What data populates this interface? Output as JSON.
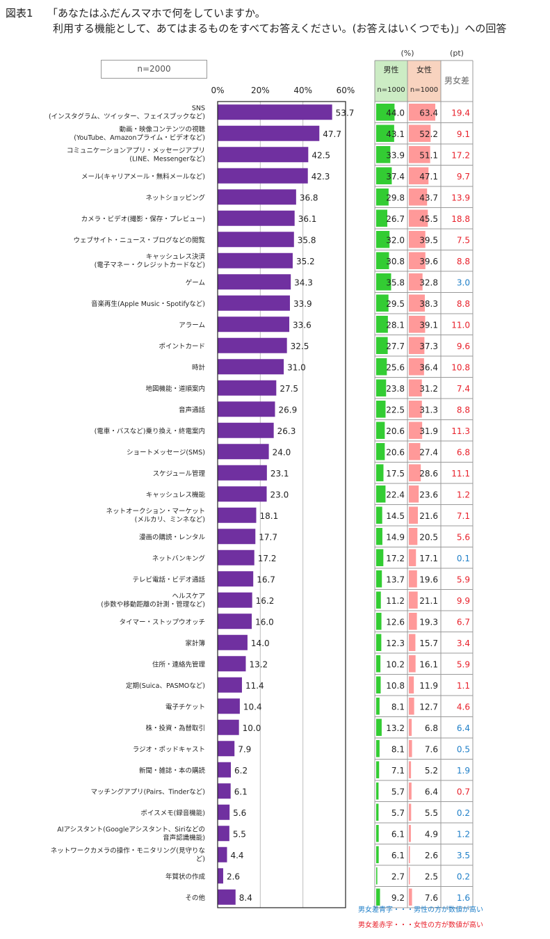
{
  "figure_label": "図表1",
  "title_line1": "「あなたはふだんスマホで何をしていますか。",
  "title_line2": "利用する機能として、あてはまるものをすべてお答えください。(お答えはいくつでも)」への回答",
  "n_total_label": "n=2000",
  "unit_percent": "(%)",
  "unit_pt": "(pt)",
  "col_male": "男性",
  "col_female": "女性",
  "col_male_n": "n=1000",
  "col_female_n": "n=1000",
  "col_diff": "男女差",
  "legend_blue": "男女差青字・・・男性の方が数値が高い",
  "legend_red": "男女差赤字・・・女性の方が数値が高い",
  "colors": {
    "bar": "#7030a0",
    "male_bar": "#33cc33",
    "female_bar": "#ff9999",
    "male_header": "#ccecc4",
    "female_header": "#f8d3bf",
    "diff_blue": "#1f7fc8",
    "diff_red": "#e8202a"
  },
  "chart_data": {
    "type": "bar",
    "orientation": "horizontal",
    "xlim": [
      0,
      60
    ],
    "xticks": [
      "0%",
      "20%",
      "40%",
      "60%"
    ],
    "grid": true,
    "rows": [
      {
        "label": [
          "SNS",
          "(インスタグラム、ツイッター、フェイスブックなど)"
        ],
        "total": 53.7,
        "male": 44.0,
        "female": 63.4,
        "diff": 19.4,
        "diff_color": "red"
      },
      {
        "label": [
          "動画・映像コンテンツの視聴",
          "(YouTube、Amazonプライム・ビデオなど)"
        ],
        "total": 47.7,
        "male": 43.1,
        "female": 52.2,
        "diff": 9.1,
        "diff_color": "red"
      },
      {
        "label": [
          "コミュニケーションアプリ・メッセージアプリ",
          "(LINE、Messengerなど)"
        ],
        "total": 42.5,
        "male": 33.9,
        "female": 51.1,
        "diff": 17.2,
        "diff_color": "red"
      },
      {
        "label": [
          "メール(キャリアメール・無料メールなど)"
        ],
        "total": 42.3,
        "male": 37.4,
        "female": 47.1,
        "diff": 9.7,
        "diff_color": "red"
      },
      {
        "label": [
          "ネットショッピング"
        ],
        "total": 36.8,
        "male": 29.8,
        "female": 43.7,
        "diff": 13.9,
        "diff_color": "red"
      },
      {
        "label": [
          "カメラ・ビデオ(撮影・保存・プレビュー)"
        ],
        "total": 36.1,
        "male": 26.7,
        "female": 45.5,
        "diff": 18.8,
        "diff_color": "red"
      },
      {
        "label": [
          "ウェブサイト・ニュース・ブログなどの閲覧"
        ],
        "total": 35.8,
        "male": 32.0,
        "female": 39.5,
        "diff": 7.5,
        "diff_color": "red"
      },
      {
        "label": [
          "キャッシュレス決済",
          "(電子マネー・クレジットカードなど)"
        ],
        "total": 35.2,
        "male": 30.8,
        "female": 39.6,
        "diff": 8.8,
        "diff_color": "red"
      },
      {
        "label": [
          "ゲーム"
        ],
        "total": 34.3,
        "male": 35.8,
        "female": 32.8,
        "diff": 3.0,
        "diff_color": "blue"
      },
      {
        "label": [
          "音楽再生(Apple Music・Spotifyなど)"
        ],
        "total": 33.9,
        "male": 29.5,
        "female": 38.3,
        "diff": 8.8,
        "diff_color": "red"
      },
      {
        "label": [
          "アラーム"
        ],
        "total": 33.6,
        "male": 28.1,
        "female": 39.1,
        "diff": 11.0,
        "diff_color": "red"
      },
      {
        "label": [
          "ポイントカード"
        ],
        "total": 32.5,
        "male": 27.7,
        "female": 37.3,
        "diff": 9.6,
        "diff_color": "red"
      },
      {
        "label": [
          "時計"
        ],
        "total": 31.0,
        "male": 25.6,
        "female": 36.4,
        "diff": 10.8,
        "diff_color": "red"
      },
      {
        "label": [
          "地図機能・道順案内"
        ],
        "total": 27.5,
        "male": 23.8,
        "female": 31.2,
        "diff": 7.4,
        "diff_color": "red"
      },
      {
        "label": [
          "音声通話"
        ],
        "total": 26.9,
        "male": 22.5,
        "female": 31.3,
        "diff": 8.8,
        "diff_color": "red"
      },
      {
        "label": [
          "(電車・バスなど)乗り換え・終電案内"
        ],
        "total": 26.3,
        "male": 20.6,
        "female": 31.9,
        "diff": 11.3,
        "diff_color": "red"
      },
      {
        "label": [
          "ショートメッセージ(SMS)"
        ],
        "total": 24.0,
        "male": 20.6,
        "female": 27.4,
        "diff": 6.8,
        "diff_color": "red"
      },
      {
        "label": [
          "スケジュール管理"
        ],
        "total": 23.1,
        "male": 17.5,
        "female": 28.6,
        "diff": 11.1,
        "diff_color": "red"
      },
      {
        "label": [
          "キャッシュレス機能"
        ],
        "total": 23.0,
        "male": 22.4,
        "female": 23.6,
        "diff": 1.2,
        "diff_color": "red"
      },
      {
        "label": [
          "ネットオークション・マーケット",
          "(メルカリ、ミンネなど)"
        ],
        "total": 18.1,
        "male": 14.5,
        "female": 21.6,
        "diff": 7.1,
        "diff_color": "red"
      },
      {
        "label": [
          "漫画の購読・レンタル"
        ],
        "total": 17.7,
        "male": 14.9,
        "female": 20.5,
        "diff": 5.6,
        "diff_color": "red"
      },
      {
        "label": [
          "ネットバンキング"
        ],
        "total": 17.2,
        "male": 17.2,
        "female": 17.1,
        "diff": 0.1,
        "diff_color": "blue"
      },
      {
        "label": [
          "テレビ電話・ビデオ通話"
        ],
        "total": 16.7,
        "male": 13.7,
        "female": 19.6,
        "diff": 5.9,
        "diff_color": "red"
      },
      {
        "label": [
          "ヘルスケア",
          "(歩数や移動距離の計測・管理など)"
        ],
        "total": 16.2,
        "male": 11.2,
        "female": 21.1,
        "diff": 9.9,
        "diff_color": "red"
      },
      {
        "label": [
          "タイマー・ストップウオッチ"
        ],
        "total": 16.0,
        "male": 12.6,
        "female": 19.3,
        "diff": 6.7,
        "diff_color": "red"
      },
      {
        "label": [
          "家計簿"
        ],
        "total": 14.0,
        "male": 12.3,
        "female": 15.7,
        "diff": 3.4,
        "diff_color": "red"
      },
      {
        "label": [
          "住所・連絡先管理"
        ],
        "total": 13.2,
        "male": 10.2,
        "female": 16.1,
        "diff": 5.9,
        "diff_color": "red"
      },
      {
        "label": [
          "定期(Suica、PASMOなど)"
        ],
        "total": 11.4,
        "male": 10.8,
        "female": 11.9,
        "diff": 1.1,
        "diff_color": "red"
      },
      {
        "label": [
          "電子チケット"
        ],
        "total": 10.4,
        "male": 8.1,
        "female": 12.7,
        "diff": 4.6,
        "diff_color": "red"
      },
      {
        "label": [
          "株・投資・為替取引"
        ],
        "total": 10.0,
        "male": 13.2,
        "female": 6.8,
        "diff": 6.4,
        "diff_color": "blue"
      },
      {
        "label": [
          "ラジオ・ポッドキャスト"
        ],
        "total": 7.9,
        "male": 8.1,
        "female": 7.6,
        "diff": 0.5,
        "diff_color": "blue"
      },
      {
        "label": [
          "新聞・雑誌・本の購読"
        ],
        "total": 6.2,
        "male": 7.1,
        "female": 5.2,
        "diff": 1.9,
        "diff_color": "blue"
      },
      {
        "label": [
          "マッチングアプリ(Pairs、Tinderなど)"
        ],
        "total": 6.1,
        "male": 5.7,
        "female": 6.4,
        "diff": 0.7,
        "diff_color": "red"
      },
      {
        "label": [
          "ボイスメモ(録音機能)"
        ],
        "total": 5.6,
        "male": 5.7,
        "female": 5.5,
        "diff": 0.2,
        "diff_color": "blue"
      },
      {
        "label": [
          "AIアシスタント(Googleアシスタント、Siriなどの",
          "音声認識機能)"
        ],
        "total": 5.5,
        "male": 6.1,
        "female": 4.9,
        "diff": 1.2,
        "diff_color": "blue"
      },
      {
        "label": [
          "ネットワークカメラの操作・モニタリング(見守りな",
          "ど)"
        ],
        "total": 4.4,
        "male": 6.1,
        "female": 2.6,
        "diff": 3.5,
        "diff_color": "blue"
      },
      {
        "label": [
          "年賀状の作成"
        ],
        "total": 2.6,
        "male": 2.7,
        "female": 2.5,
        "diff": 0.2,
        "diff_color": "blue"
      },
      {
        "label": [
          "その他"
        ],
        "total": 8.4,
        "male": 9.2,
        "female": 7.6,
        "diff": 1.6,
        "diff_color": "blue"
      }
    ]
  }
}
